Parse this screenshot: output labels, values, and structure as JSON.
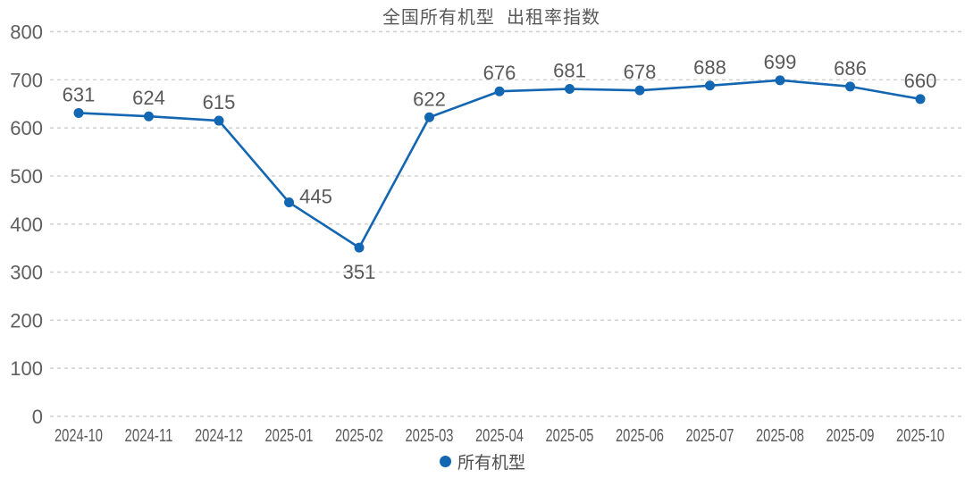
{
  "chart_data": {
    "type": "line",
    "title": "全国所有机型  出租率指数",
    "categories": [
      "2024-10",
      "2024-11",
      "2024-12",
      "2025-01",
      "2025-02",
      "2025-03",
      "2025-04",
      "2025-05",
      "2025-06",
      "2025-07",
      "2025-08",
      "2025-09",
      "2025-10"
    ],
    "series": [
      {
        "name": "所有机型",
        "values": [
          631,
          624,
          615,
          445,
          351,
          622,
          676,
          681,
          678,
          688,
          699,
          686,
          660
        ]
      }
    ],
    "xlabel": "",
    "ylabel": "",
    "ylim": [
      0,
      800
    ],
    "ytick_interval": 100,
    "yticks": [
      0,
      100,
      200,
      300,
      400,
      500,
      600,
      700,
      800
    ],
    "grid": "horizontal-dashed",
    "data_labels": true,
    "legend_position": "bottom-center",
    "legend_marker": "circle",
    "colors": {
      "series": "#1366b2",
      "label_text": "#595959",
      "axis_text": "#5f5f5f",
      "gridline": "#cfcfcf",
      "background": "#ffffff"
    }
  }
}
